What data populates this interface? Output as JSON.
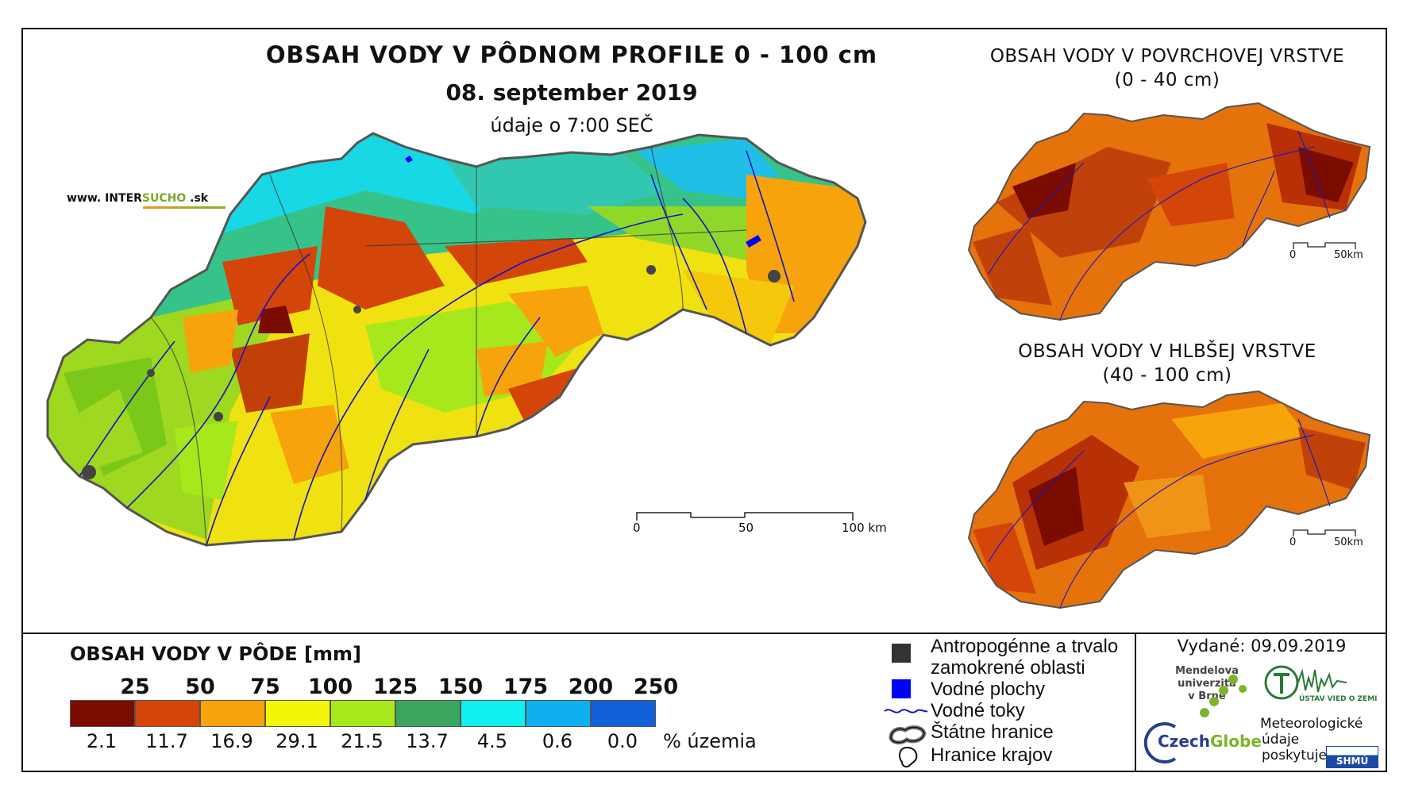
{
  "map": {
    "title": "OBSAH VODY V PÔDNOM PROFILE 0 - 100 cm",
    "date": "08. september 2019",
    "data_note": "údaje o 7:00 SEČ",
    "website_prefix": "www. INTER",
    "website_accent": "SUCHO",
    "website_suffix": " .sk",
    "scale": {
      "labels": [
        "0",
        "50",
        "100 km"
      ]
    }
  },
  "inset_surface": {
    "title_line1": "OBSAH VODY V POVRCHOVEJ VRSTVE",
    "title_line2": "(0 - 40 cm)",
    "scale_labels": [
      "0",
      "50km"
    ]
  },
  "inset_deep": {
    "title_line1": "OBSAH VODY V HLBŠEJ VRSTVE",
    "title_line2": "(40 - 100 cm)",
    "scale_labels": [
      "0",
      "50km"
    ]
  },
  "legend": {
    "title": "OBSAH VODY V PÔDE [mm]",
    "thresholds": [
      "25",
      "50",
      "75",
      "100",
      "125",
      "150",
      "175",
      "200",
      "250"
    ],
    "percentages": [
      "2.1",
      "11.7",
      "16.9",
      "29.1",
      "21.5",
      "13.7",
      "4.5",
      "0.6",
      "0.0"
    ],
    "unit": "% územia",
    "colors": [
      "#7a0c02",
      "#d4450a",
      "#f7a30c",
      "#f5f50a",
      "#a6e81c",
      "#3ba55c",
      "#10f0f0",
      "#10b0f0",
      "#1060d8"
    ]
  },
  "map_key": {
    "items": [
      {
        "label_line1": "Antropogénne a trvalo",
        "label_line2": "zamokrené oblasti",
        "icon": "dark-square-icon",
        "color": "#333333"
      },
      {
        "label_line1": "Vodné plochy",
        "icon": "blue-square-icon",
        "color": "#0000ff"
      },
      {
        "label_line1": "Vodné toky",
        "icon": "river-line-icon",
        "color": "#1414c8"
      },
      {
        "label_line1": "Štátne hranice",
        "icon": "state-border-icon"
      },
      {
        "label_line1": "Hranice krajov",
        "icon": "region-border-icon"
      }
    ]
  },
  "footer": {
    "issued": "Vydané: 09.09.2019",
    "mendel_line1": "Mendelova",
    "mendel_line2": "univerzita",
    "mendel_line3": "v Brně",
    "czechglobe_a": "Czech",
    "czechglobe_b": "Globe",
    "uvoz_text": "ÚSTAV VIED O ZEMI",
    "meteo_line1": "Meteorologické",
    "meteo_line2": "údaje",
    "meteo_line3": "poskytuje:",
    "shmu_text": "SHMÚ"
  }
}
